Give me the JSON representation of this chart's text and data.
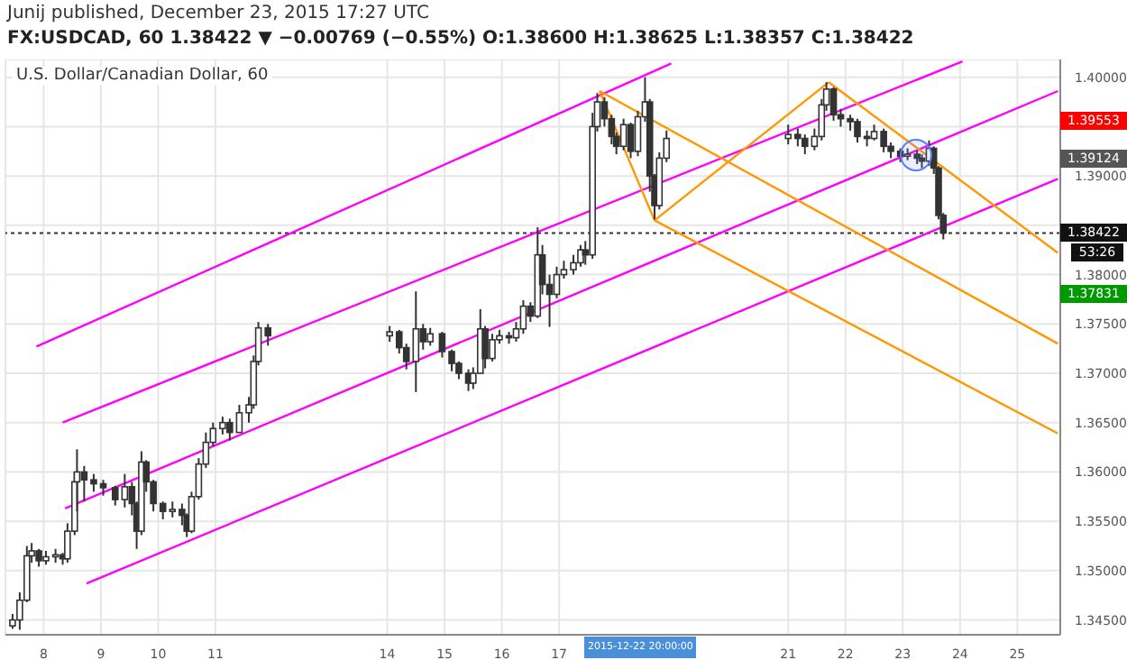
{
  "chart_data": {
    "type": "candlestick",
    "subtitle": "U.S. Dollar/Canadian Dollar, 60",
    "annotations": [
      "Junij published, December 23, 2015 17:27 UTC",
      "FX:USDCAD, 60 1.38422 ▼ −0.00769 (−0.55%) O:1.38600 H:1.38625 L:1.38357 C:1.38422",
      "1.39553",
      "1.39124",
      "1.37831",
      "53:26",
      "2015-12-22 20:00:00"
    ],
    "xlim": [
      "2015-12-07T08:00",
      "2015-12-25T18:00"
    ],
    "xticks": [
      {
        "value": "2015-12-08",
        "label": "8"
      },
      {
        "value": "2015-12-09",
        "label": "9"
      },
      {
        "value": "2015-12-10",
        "label": "10"
      },
      {
        "value": "2015-12-11",
        "label": "11"
      },
      {
        "value": "2015-12-14",
        "label": "14"
      },
      {
        "value": "2015-12-15",
        "label": "15"
      },
      {
        "value": "2015-12-16",
        "label": "16"
      },
      {
        "value": "2015-12-17",
        "label": "17"
      },
      {
        "value": "2015-12-21",
        "label": "21"
      },
      {
        "value": "2015-12-22",
        "label": "22"
      },
      {
        "value": "2015-12-23",
        "label": "23"
      },
      {
        "value": "2015-12-24",
        "label": "24"
      },
      {
        "value": "2015-12-25",
        "label": "25"
      }
    ],
    "ylim": [
      1.3435,
      1.4018
    ],
    "yticks": [
      {
        "value": 1.345,
        "label": "1.34500"
      },
      {
        "value": 1.35,
        "label": "1.35000"
      },
      {
        "value": 1.355,
        "label": "1.35500"
      },
      {
        "value": 1.36,
        "label": "1.36000"
      },
      {
        "value": 1.365,
        "label": "1.36500"
      },
      {
        "value": 1.37,
        "label": "1.37000"
      },
      {
        "value": 1.375,
        "label": "1.37500"
      },
      {
        "value": 1.38,
        "label": "1.38000"
      },
      {
        "value": 1.385,
        "label": null
      },
      {
        "value": 1.39,
        "label": "1.39000"
      },
      {
        "value": 1.395,
        "label": null
      },
      {
        "value": 1.4,
        "label": "1.40000"
      }
    ],
    "grid": true,
    "legend": false,
    "marker": "none",
    "line_style": "solid",
    "ref_lines": [
      {
        "axis": "y",
        "value": 1.38422,
        "label": "1.38422",
        "color": "#333333",
        "line_style": "dotted"
      }
    ],
    "series": [
      {
        "color": "#333333",
        "x": [
          "2015-12-07T11:00",
          "2015-12-07T14:00",
          "2015-12-07T17:00",
          "2015-12-07T19:00",
          "2015-12-07T22:00",
          "2015-12-08T01:00",
          "2015-12-08T05:00",
          "2015-12-08T08:00",
          "2015-12-08T10:00",
          "2015-12-08T13:00",
          "2015-12-08T14:00",
          "2015-12-08T17:00",
          "2015-12-08T21:00",
          "2015-12-09T01:00",
          "2015-12-09T06:00",
          "2015-12-09T10:00",
          "2015-12-09T13:00",
          "2015-12-09T15:00",
          "2015-12-09T17:00",
          "2015-12-09T19:00",
          "2015-12-09T22:00",
          "2015-12-10T02:00",
          "2015-12-10T06:00",
          "2015-12-10T10:00",
          "2015-12-10T12:00",
          "2015-12-10T14:00",
          "2015-12-10T17:00",
          "2015-12-10T20:00",
          "2015-12-10T23:00",
          "2015-12-11T03:00",
          "2015-12-11T06:00",
          "2015-12-11T10:00",
          "2015-12-11T14:00",
          "2015-12-11T16:00",
          "2015-12-11T18:00",
          "2015-12-11T22:00",
          "2015-12-14T01:00",
          "2015-12-14T05:00",
          "2015-12-14T08:00",
          "2015-12-14T12:00",
          "2015-12-14T15:00",
          "2015-12-14T18:00",
          "2015-12-14T23:00",
          "2015-12-15T03:00",
          "2015-12-15T06:00",
          "2015-12-15T10:00",
          "2015-12-15T12:00",
          "2015-12-15T15:00",
          "2015-12-15T17:00",
          "2015-12-15T20:00",
          "2015-12-15T23:00",
          "2015-12-16T03:00",
          "2015-12-16T06:00",
          "2015-12-16T09:00",
          "2015-12-16T12:00",
          "2015-12-16T15:00",
          "2015-12-16T17:00",
          "2015-12-16T20:00",
          "2015-12-16T23:00",
          "2015-12-17T02:00",
          "2015-12-17T06:00",
          "2015-12-17T09:00",
          "2015-12-17T11:00",
          "2015-12-17T14:00",
          "2015-12-17T16:00",
          "2015-12-17T19:00",
          "2015-12-17T22:00",
          "2015-12-18T00:00",
          "2015-12-18T03:00",
          "2015-12-18T06:00",
          "2015-12-18T09:00",
          "2015-12-18T12:00",
          "2015-12-18T14:00",
          "2015-12-18T16:00",
          "2015-12-18T18:00",
          "2015-12-18T21:00",
          "2015-12-21T00:00",
          "2015-12-21T04:00",
          "2015-12-21T07:00",
          "2015-12-21T11:00",
          "2015-12-21T14:00",
          "2015-12-21T16:00",
          "2015-12-21T19:00",
          "2015-12-21T22:00",
          "2015-12-22T02:00",
          "2015-12-22T05:00",
          "2015-12-22T09:00",
          "2015-12-22T12:00",
          "2015-12-22T16:00",
          "2015-12-22T19:00",
          "2015-12-22T23:00",
          "2015-12-23T02:00",
          "2015-12-23T06:00",
          "2015-12-23T08:00",
          "2015-12-23T11:00",
          "2015-12-23T13:00",
          "2015-12-23T15:00",
          "2015-12-23T17:00"
        ],
        "ohlc": [
          [
            1.3444,
            1.3456,
            1.3441,
            1.345
          ],
          [
            1.345,
            1.3478,
            1.344,
            1.347
          ],
          [
            1.347,
            1.3525,
            1.3468,
            1.3515
          ],
          [
            1.3515,
            1.3528,
            1.3508,
            1.352
          ],
          [
            1.352,
            1.3522,
            1.3504,
            1.351
          ],
          [
            1.351,
            1.352,
            1.3506,
            1.3514
          ],
          [
            1.3514,
            1.3522,
            1.3508,
            1.3516
          ],
          [
            1.3516,
            1.3518,
            1.3506,
            1.3512
          ],
          [
            1.3512,
            1.3548,
            1.3508,
            1.354
          ],
          [
            1.354,
            1.36,
            1.3536,
            1.359
          ],
          [
            1.359,
            1.3623,
            1.356,
            1.36
          ],
          [
            1.36,
            1.3606,
            1.357,
            1.3592
          ],
          [
            1.3592,
            1.3598,
            1.358,
            1.3588
          ],
          [
            1.3588,
            1.3592,
            1.3576,
            1.3584
          ],
          [
            1.3584,
            1.3586,
            1.3566,
            1.3572
          ],
          [
            1.3572,
            1.3598,
            1.3564,
            1.3585
          ],
          [
            1.3585,
            1.359,
            1.3556,
            1.3568
          ],
          [
            1.3568,
            1.357,
            1.3522,
            1.354
          ],
          [
            1.354,
            1.3621,
            1.3536,
            1.361
          ],
          [
            1.361,
            1.3612,
            1.358,
            1.359
          ],
          [
            1.359,
            1.3592,
            1.356,
            1.3568
          ],
          [
            1.3568,
            1.357,
            1.3552,
            1.356
          ],
          [
            1.356,
            1.357,
            1.3554,
            1.3562
          ],
          [
            1.3562,
            1.3568,
            1.3546,
            1.3556
          ],
          [
            1.3556,
            1.3558,
            1.3534,
            1.354
          ],
          [
            1.354,
            1.358,
            1.3538,
            1.3575
          ],
          [
            1.3575,
            1.3614,
            1.3572,
            1.3608
          ],
          [
            1.3608,
            1.364,
            1.3604,
            1.363
          ],
          [
            1.363,
            1.365,
            1.3626,
            1.3644
          ],
          [
            1.3644,
            1.3656,
            1.3638,
            1.365
          ],
          [
            1.365,
            1.3654,
            1.3632,
            1.364
          ],
          [
            1.364,
            1.3668,
            1.364,
            1.366
          ],
          [
            1.366,
            1.3676,
            1.365,
            1.3668
          ],
          [
            1.3668,
            1.3718,
            1.3664,
            1.3712
          ],
          [
            1.3712,
            1.3752,
            1.3708,
            1.3746
          ],
          [
            1.3746,
            1.375,
            1.3728,
            1.3738
          ],
          [
            1.3738,
            1.3748,
            1.3732,
            1.3742
          ],
          [
            1.3742,
            1.3744,
            1.372,
            1.3726
          ],
          [
            1.3726,
            1.373,
            1.3704,
            1.3712
          ],
          [
            1.3712,
            1.3783,
            1.3681,
            1.3745
          ],
          [
            1.3745,
            1.375,
            1.3724,
            1.3732
          ],
          [
            1.3732,
            1.3746,
            1.3728,
            1.374
          ],
          [
            1.374,
            1.3742,
            1.3716,
            1.3722
          ],
          [
            1.3722,
            1.3724,
            1.3702,
            1.371
          ],
          [
            1.371,
            1.3712,
            1.3694,
            1.37
          ],
          [
            1.37,
            1.3704,
            1.3682,
            1.369
          ],
          [
            1.369,
            1.3706,
            1.3684,
            1.37
          ],
          [
            1.37,
            1.3765,
            1.37,
            1.3745
          ],
          [
            1.3745,
            1.3748,
            1.3705,
            1.3715
          ],
          [
            1.3715,
            1.374,
            1.3712,
            1.3734
          ],
          [
            1.3734,
            1.3744,
            1.373,
            1.3738
          ],
          [
            1.3738,
            1.3742,
            1.373,
            1.3736
          ],
          [
            1.3736,
            1.3752,
            1.3732,
            1.3745
          ],
          [
            1.3745,
            1.3774,
            1.374,
            1.3768
          ],
          [
            1.3768,
            1.3772,
            1.3752,
            1.3758
          ],
          [
            1.3758,
            1.3848,
            1.3756,
            1.382
          ],
          [
            1.382,
            1.383,
            1.378,
            1.379
          ],
          [
            1.379,
            1.38,
            1.3747,
            1.378
          ],
          [
            1.378,
            1.3808,
            1.3776,
            1.38
          ],
          [
            1.38,
            1.3814,
            1.3796,
            1.3805
          ],
          [
            1.3805,
            1.382,
            1.38,
            1.3812
          ],
          [
            1.3812,
            1.383,
            1.3808,
            1.3825
          ],
          [
            1.3825,
            1.3834,
            1.381,
            1.382
          ],
          [
            1.382,
            1.3964,
            1.3816,
            1.395
          ],
          [
            1.395,
            1.3984,
            1.3945,
            1.3975
          ],
          [
            1.3975,
            1.398,
            1.395,
            1.3958
          ],
          [
            1.3958,
            1.3962,
            1.3932,
            1.394
          ],
          [
            1.394,
            1.3944,
            1.3922,
            1.393
          ],
          [
            1.393,
            1.3958,
            1.3926,
            1.3952
          ],
          [
            1.3952,
            1.3954,
            1.3918,
            1.3925
          ],
          [
            1.3925,
            1.3966,
            1.392,
            1.396
          ],
          [
            1.396,
            1.4,
            1.3955,
            1.3975
          ],
          [
            1.3975,
            1.3978,
            1.3884,
            1.39
          ],
          [
            1.39,
            1.3902,
            1.3856,
            1.387
          ],
          [
            1.387,
            1.3924,
            1.3866,
            1.3918
          ],
          [
            1.3918,
            1.3946,
            1.3914,
            1.3938
          ],
          [
            1.3938,
            1.3952,
            1.3932,
            1.3942
          ],
          [
            1.3942,
            1.3948,
            1.393,
            1.3938
          ],
          [
            1.3938,
            1.3942,
            1.3922,
            1.393
          ],
          [
            1.393,
            1.3948,
            1.3926,
            1.394
          ],
          [
            1.394,
            1.3978,
            1.3936,
            1.3972
          ],
          [
            1.3972,
            1.3995,
            1.3966,
            1.3988
          ],
          [
            1.3988,
            1.399,
            1.3956,
            1.3962
          ],
          [
            1.3962,
            1.3968,
            1.395,
            1.3958
          ],
          [
            1.3958,
            1.3962,
            1.3946,
            1.3955
          ],
          [
            1.3955,
            1.3958,
            1.3934,
            1.394
          ],
          [
            1.394,
            1.3946,
            1.393,
            1.3938
          ],
          [
            1.3938,
            1.3952,
            1.3936,
            1.3945
          ],
          [
            1.3945,
            1.3948,
            1.3924,
            1.393
          ],
          [
            1.393,
            1.3934,
            1.3918,
            1.3925
          ],
          [
            1.3925,
            1.3928,
            1.3914,
            1.392
          ],
          [
            1.392,
            1.3928,
            1.3916,
            1.3922
          ],
          [
            1.3922,
            1.3926,
            1.3912,
            1.3918
          ],
          [
            1.3918,
            1.3922,
            1.3908,
            1.3915
          ],
          [
            1.3915,
            1.3936,
            1.391,
            1.3928
          ],
          [
            1.3928,
            1.393,
            1.3902,
            1.3908
          ],
          [
            1.3908,
            1.391,
            1.3856,
            1.386
          ],
          [
            1.386,
            1.38625,
            1.38357,
            1.38422
          ]
        ]
      },
      {
        "type": "line",
        "color": "#ff00ff",
        "x": [
          "2015-12-07T21:00",
          "2015-12-18T23:00"
        ],
        "values": [
          1.3727,
          1.4014
        ]
      },
      {
        "type": "line",
        "color": "#ff00ff",
        "x": [
          "2015-12-08T08:00",
          "2015-12-24T01:00"
        ],
        "values": [
          1.365,
          1.4016
        ]
      },
      {
        "type": "line",
        "color": "#ff00ff",
        "x": [
          "2015-12-08T09:00",
          "2015-12-25T17:00"
        ],
        "values": [
          1.3563,
          1.3986
        ]
      },
      {
        "type": "line",
        "color": "#ff00ff",
        "x": [
          "2015-12-08T18:00",
          "2015-12-25T17:00"
        ],
        "values": [
          1.3487,
          1.3897
        ]
      },
      {
        "type": "line",
        "color": "#ff9800",
        "x": [
          "2015-12-17T17:00",
          "2015-12-18T16:00",
          "2015-12-21T17:00"
        ],
        "values": [
          1.3986,
          1.3855,
          1.3995
        ]
      },
      {
        "type": "line",
        "color": "#ff9800",
        "x": [
          "2015-12-17T17:00",
          "2015-12-25T17:00"
        ],
        "values": [
          1.3986,
          1.373
        ]
      },
      {
        "type": "line",
        "color": "#ff9800",
        "x": [
          "2015-12-21T17:00",
          "2015-12-25T17:00"
        ],
        "values": [
          1.3995,
          1.3822
        ]
      },
      {
        "type": "line",
        "color": "#ff9800",
        "x": [
          "2015-12-18T16:00",
          "2015-12-25T17:00"
        ],
        "values": [
          1.3855,
          1.3639
        ]
      }
    ]
  }
}
